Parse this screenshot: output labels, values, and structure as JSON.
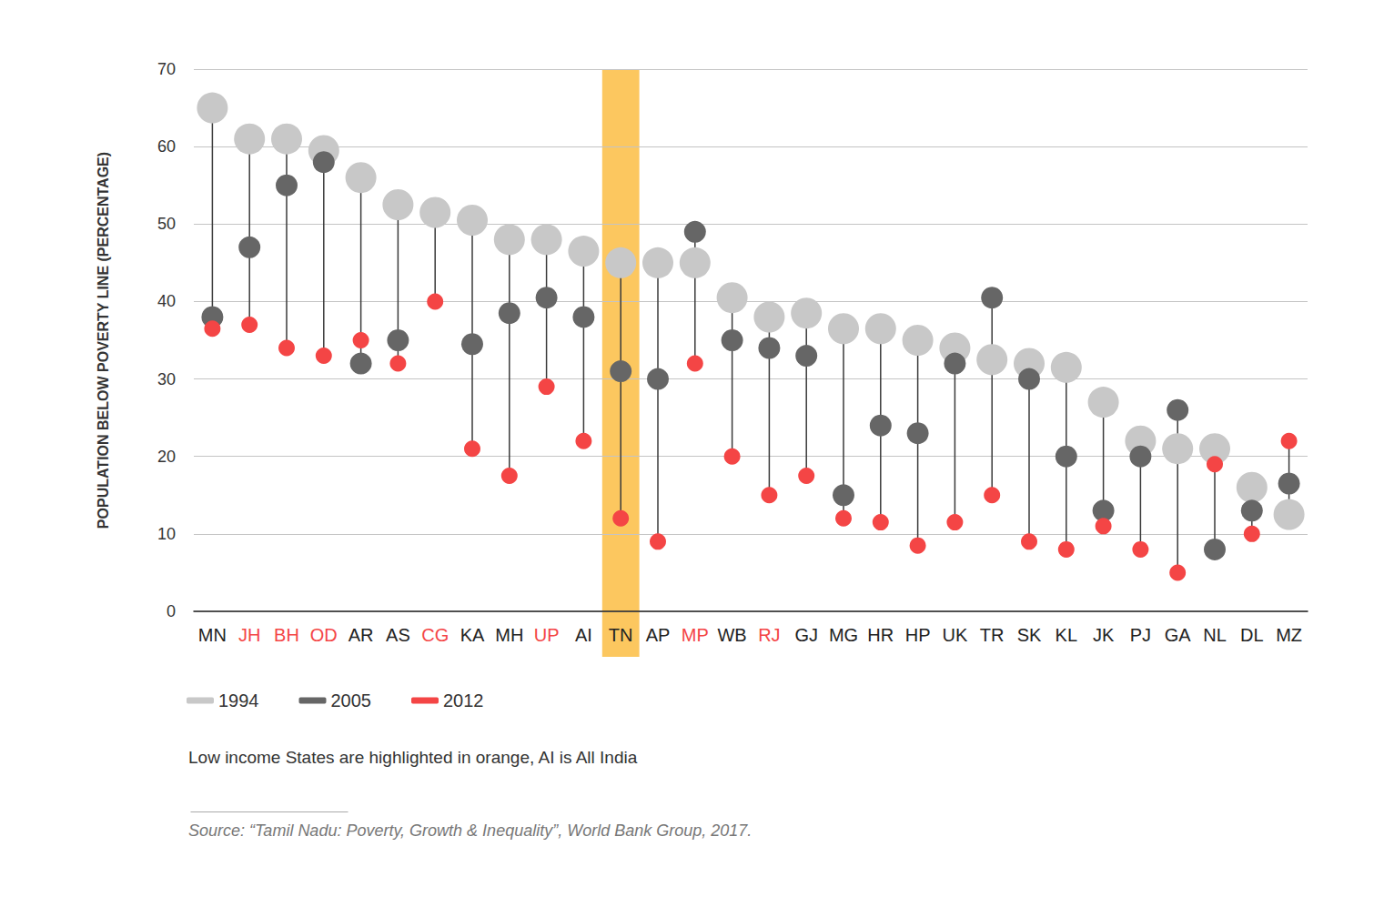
{
  "chart_data": {
    "type": "dumbbell",
    "y_label": "POPULATION BELOW POVERTY LINE (PERCENTAGE)",
    "categories": [
      "MN",
      "JH",
      "BH",
      "OD",
      "AR",
      "AS",
      "CG",
      "KA",
      "MH",
      "UP",
      "AI",
      "TN",
      "AP",
      "MP",
      "WB",
      "RJ",
      "GJ",
      "MG",
      "HR",
      "HP",
      "UK",
      "TR",
      "SK",
      "KL",
      "JK",
      "PJ",
      "GA",
      "NL",
      "DL",
      "MZ"
    ],
    "low_income": [
      "JH",
      "BH",
      "OD",
      "CG",
      "UP",
      "MP",
      "RJ"
    ],
    "low_income_color": "#f44545",
    "highlight": "TN",
    "highlight_color": "#fcc75f",
    "series": [
      {
        "name": "1994",
        "color": "#c8c8c8",
        "values": [
          65,
          61,
          61,
          59.5,
          56,
          52.5,
          51.5,
          50.5,
          48,
          48,
          46.5,
          45,
          45,
          45,
          40.5,
          38,
          38.5,
          36.5,
          36.5,
          35,
          34,
          32.5,
          32,
          31.5,
          27,
          22,
          21,
          21,
          16,
          12.5
        ]
      },
      {
        "name": "2005",
        "color": "#666666",
        "values": [
          38,
          47,
          55,
          58,
          32,
          35,
          null,
          34.5,
          38.5,
          40.5,
          38,
          31,
          30,
          49,
          35,
          34,
          33,
          15,
          24,
          23,
          32,
          40.5,
          30,
          20,
          13,
          20,
          26,
          8,
          13,
          16.5
        ]
      },
      {
        "name": "2012",
        "color": "#f44545",
        "values": [
          36.5,
          37,
          34,
          33,
          35,
          32,
          40,
          21,
          17.5,
          29,
          22,
          12,
          9,
          32,
          20,
          15,
          17.5,
          12,
          11.5,
          8.5,
          11.5,
          15,
          9,
          8,
          11,
          8,
          5,
          19,
          10,
          22
        ]
      }
    ],
    "marker": "circle",
    "ylim": [
      0,
      70
    ],
    "yticks": [
      0,
      10,
      20,
      30,
      40,
      50,
      60,
      70
    ],
    "grid": true,
    "legend": "bottom-left",
    "note": "Low income States are highlighted in orange, AI is All India",
    "source": "Source: “Tamil Nadu: Poverty, Growth & Inequality”, World Bank Group, 2017."
  }
}
